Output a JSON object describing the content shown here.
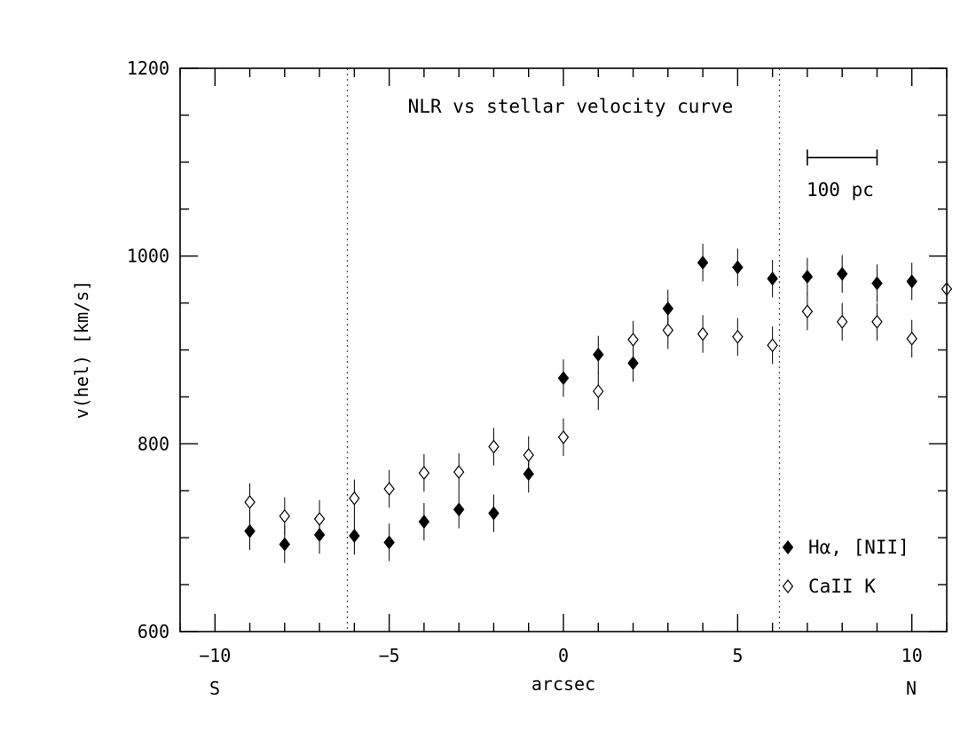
{
  "chart_data": {
    "type": "scatter",
    "title": "NLR vs stellar velocity curve",
    "xlabel": "arcsec",
    "ylabel": "v(hel) [km/s]",
    "xlim": [
      -11,
      11
    ],
    "ylim": [
      600,
      1200
    ],
    "x_ticks": [
      -10,
      -5,
      0,
      5,
      10
    ],
    "x_tick_labels": [
      "−10",
      "−5",
      "0",
      "5",
      "10"
    ],
    "y_ticks": [
      600,
      800,
      1000,
      1200
    ],
    "y_tick_labels": [
      "600",
      "800",
      "1000",
      "1200"
    ],
    "side_labels": {
      "left": "S",
      "right": "N"
    },
    "vertical_dotted_lines": [
      -6.2,
      6.2
    ],
    "scale_bar": {
      "x_start": 7,
      "x_end": 9,
      "y": 1105,
      "label": "100 pc"
    },
    "legend_position": "bottom-right",
    "series": [
      {
        "name": "Hα, [NII]",
        "marker": "filled-diamond",
        "color": "#000000",
        "x": [
          -9,
          -8,
          -7,
          -6,
          -5,
          -4,
          -3,
          -2,
          -1,
          0,
          1,
          2,
          3,
          4,
          5,
          6,
          7,
          8,
          9,
          10
        ],
        "y": [
          707,
          693,
          703,
          702,
          695,
          717,
          730,
          726,
          768,
          870,
          895,
          886,
          944,
          993,
          988,
          976,
          978,
          981,
          971,
          973
        ],
        "err": [
          20,
          20,
          20,
          20,
          20,
          20,
          20,
          20,
          20,
          20,
          20,
          20,
          20,
          20,
          20,
          20,
          20,
          20,
          20,
          20
        ]
      },
      {
        "name": "CaII K",
        "marker": "open-diamond",
        "color": "#000000",
        "x": [
          -9,
          -8,
          -7,
          -6,
          -5,
          -4,
          -3,
          -2,
          -1,
          0,
          1,
          2,
          3,
          4,
          5,
          6,
          7,
          8,
          9,
          10,
          11
        ],
        "y": [
          738,
          723,
          720,
          742,
          752,
          769,
          770,
          797,
          788,
          807,
          856,
          911,
          921,
          917,
          914,
          905,
          941,
          930,
          930,
          912,
          965
        ],
        "err": [
          20,
          20,
          20,
          20,
          20,
          20,
          20,
          20,
          20,
          20,
          20,
          20,
          20,
          20,
          20,
          20,
          20,
          20,
          20,
          20,
          20
        ]
      }
    ]
  }
}
